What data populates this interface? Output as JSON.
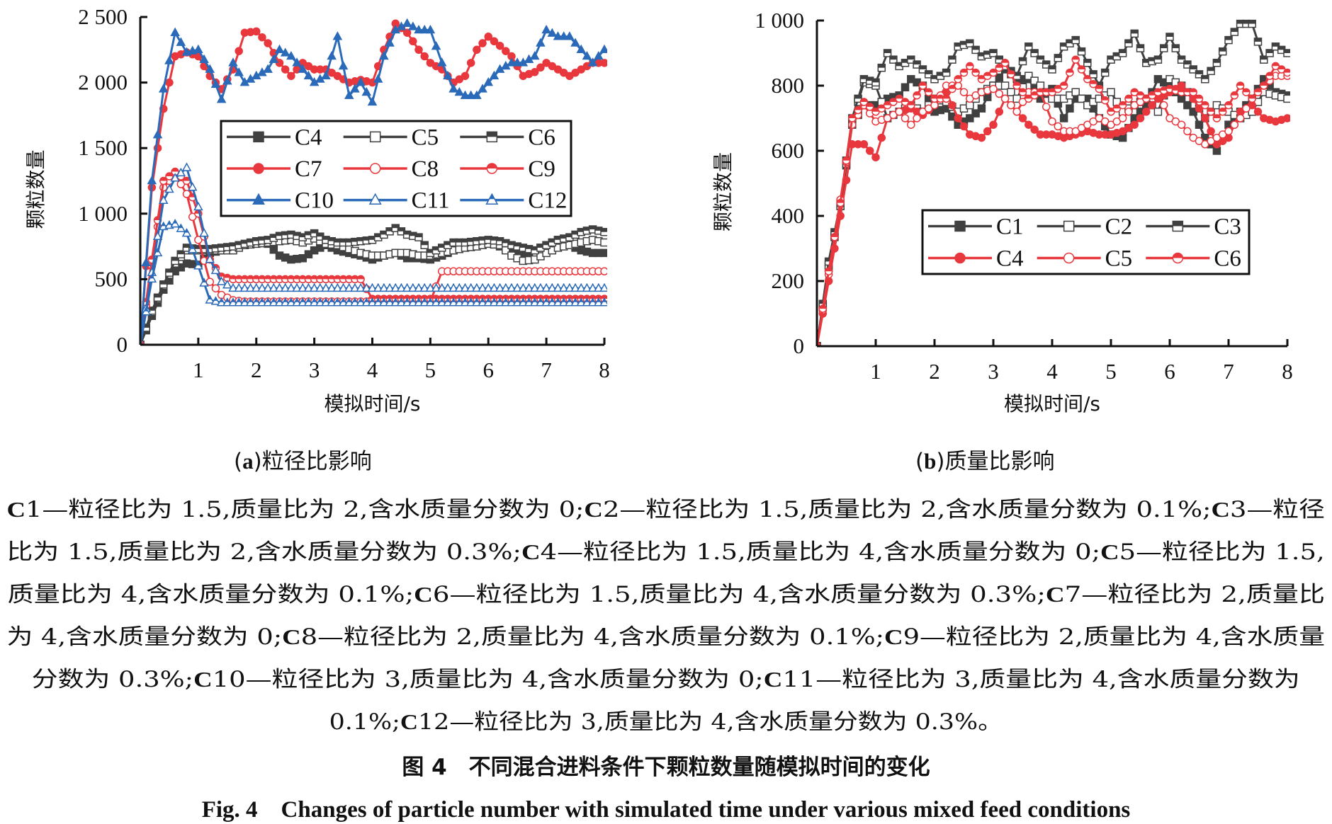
{
  "chart_data": [
    {
      "type": "line",
      "id": "a",
      "subtitle_label": "a",
      "subtitle_text": "粒径比影响",
      "xlabel": "模拟时间/s",
      "ylabel": "颗粒数量",
      "xlim": [
        0,
        8
      ],
      "ylim": [
        0,
        2500
      ],
      "xticks": [
        1,
        2,
        3,
        4,
        5,
        6,
        7,
        8
      ],
      "yticks": [
        0,
        500,
        1000,
        1500,
        2000,
        2500
      ],
      "ytick_labels": [
        "0",
        "500",
        "1 000",
        "1 500",
        "2 000",
        "2 500"
      ],
      "xtick_labels": [
        "1",
        "2",
        "3",
        "4",
        "5",
        "6",
        "7",
        "8"
      ],
      "legend_placement": "center-right",
      "legend_columns": 3,
      "x": [
        0,
        0.2,
        0.4,
        0.6,
        0.8,
        1.0,
        1.2,
        1.4,
        1.6,
        1.8,
        2.0,
        2.2,
        2.4,
        2.6,
        2.8,
        3.0,
        3.2,
        3.4,
        3.6,
        3.8,
        4.0,
        4.2,
        4.4,
        4.6,
        4.8,
        5.0,
        5.2,
        5.4,
        5.6,
        5.8,
        6.0,
        6.2,
        6.4,
        6.6,
        6.8,
        7.0,
        7.2,
        7.4,
        7.6,
        7.8,
        8.0
      ],
      "series": [
        {
          "name": "C4",
          "color": "#404040",
          "marker": "square-filled",
          "values": [
            0,
            220,
            420,
            560,
            620,
            610,
            700,
            720,
            730,
            760,
            780,
            770,
            680,
            650,
            660,
            720,
            760,
            720,
            700,
            680,
            650,
            680,
            700,
            660,
            660,
            650,
            680,
            720,
            760,
            770,
            780,
            750,
            700,
            680,
            720,
            760,
            800,
            760,
            720,
            700,
            700
          ]
        },
        {
          "name": "C5",
          "color": "#404040",
          "marker": "square-open",
          "values": [
            0,
            250,
            450,
            620,
            720,
            720,
            720,
            720,
            720,
            760,
            770,
            780,
            790,
            800,
            780,
            810,
            770,
            760,
            730,
            700,
            680,
            680,
            700,
            700,
            680,
            680,
            700,
            720,
            740,
            750,
            770,
            760,
            680,
            640,
            650,
            700,
            740,
            760,
            780,
            800,
            780
          ]
        },
        {
          "name": "C6",
          "color": "#404040",
          "marker": "square-half",
          "values": [
            0,
            260,
            460,
            640,
            740,
            730,
            730,
            740,
            750,
            770,
            790,
            800,
            830,
            840,
            820,
            850,
            800,
            780,
            780,
            790,
            800,
            840,
            890,
            840,
            820,
            700,
            740,
            780,
            780,
            790,
            800,
            790,
            760,
            740,
            720,
            760,
            800,
            820,
            860,
            880,
            860
          ]
        },
        {
          "name": "C7",
          "color": "#e8373d",
          "marker": "circle-filled",
          "values": [
            0,
            1200,
            1800,
            2200,
            2230,
            2200,
            2050,
            1950,
            2100,
            2380,
            2390,
            2300,
            2150,
            2050,
            2150,
            2100,
            2100,
            2050,
            2000,
            2020,
            2000,
            2250,
            2450,
            2380,
            2250,
            2150,
            2100,
            2000,
            2050,
            2250,
            2350,
            2280,
            2200,
            2050,
            2080,
            2150,
            2100,
            2050,
            2100,
            2150,
            2150
          ]
        },
        {
          "name": "C8",
          "color": "#e8373d",
          "marker": "circle-open",
          "values": [
            0,
            600,
            1200,
            1300,
            1150,
            800,
            480,
            380,
            340,
            330,
            330,
            330,
            330,
            330,
            330,
            330,
            330,
            330,
            330,
            330,
            330,
            330,
            330,
            330,
            330,
            330,
            560,
            560,
            560,
            560,
            560,
            560,
            560,
            560,
            560,
            560,
            560,
            560,
            560,
            560,
            560
          ]
        },
        {
          "name": "C9",
          "color": "#e8373d",
          "marker": "circle-half",
          "values": [
            0,
            650,
            1250,
            1320,
            1250,
            1000,
            650,
            520,
            500,
            500,
            500,
            500,
            500,
            500,
            500,
            500,
            500,
            500,
            500,
            500,
            350,
            350,
            350,
            350,
            350,
            350,
            350,
            350,
            350,
            350,
            350,
            350,
            350,
            350,
            350,
            350,
            350,
            350,
            350,
            350,
            350
          ]
        },
        {
          "name": "C10",
          "color": "#2a6ab8",
          "marker": "triangle-filled",
          "values": [
            0,
            1250,
            1950,
            2380,
            2230,
            2250,
            2100,
            1870,
            2150,
            2000,
            2050,
            2100,
            2250,
            2200,
            2100,
            2000,
            2050,
            2350,
            1900,
            2000,
            1850,
            2200,
            2400,
            2450,
            2400,
            2400,
            2150,
            1950,
            1900,
            1900,
            2000,
            2100,
            2150,
            2150,
            2200,
            2400,
            2350,
            2350,
            2250,
            2150,
            2250
          ]
        },
        {
          "name": "C11",
          "color": "#2a6ab8",
          "marker": "triangle-open",
          "values": [
            0,
            550,
            1100,
            1270,
            1350,
            1050,
            650,
            480,
            430,
            430,
            430,
            430,
            430,
            430,
            430,
            430,
            430,
            430,
            430,
            430,
            430,
            430,
            430,
            430,
            430,
            430,
            430,
            430,
            430,
            430,
            430,
            430,
            430,
            430,
            430,
            430,
            430,
            430,
            430,
            430,
            430
          ]
        },
        {
          "name": "C12",
          "color": "#2a6ab8",
          "marker": "triangle-half",
          "values": [
            0,
            500,
            900,
            920,
            850,
            600,
            340,
            320,
            320,
            320,
            320,
            320,
            320,
            320,
            320,
            320,
            320,
            320,
            320,
            320,
            320,
            320,
            320,
            320,
            320,
            320,
            320,
            320,
            320,
            320,
            320,
            320,
            320,
            320,
            320,
            320,
            320,
            320,
            320,
            320,
            320
          ]
        }
      ]
    },
    {
      "type": "line",
      "id": "b",
      "subtitle_label": "b",
      "subtitle_text": "质量比影响",
      "xlabel": "模拟时间/s",
      "ylabel": "颗粒数量",
      "xlim": [
        0,
        8
      ],
      "ylim": [
        0,
        1000
      ],
      "xticks": [
        1,
        2,
        3,
        4,
        5,
        6,
        7,
        8
      ],
      "yticks": [
        0,
        200,
        400,
        600,
        800,
        1000
      ],
      "ytick_labels": [
        "0",
        "200",
        "400",
        "600",
        "800",
        "1 000"
      ],
      "xtick_labels": [
        "1",
        "2",
        "3",
        "4",
        "5",
        "6",
        "7",
        "8"
      ],
      "legend_placement": "lower-right",
      "legend_columns": 3,
      "x": [
        0,
        0.2,
        0.4,
        0.6,
        0.8,
        1.0,
        1.2,
        1.4,
        1.6,
        1.8,
        2.0,
        2.2,
        2.4,
        2.6,
        2.8,
        3.0,
        3.2,
        3.4,
        3.6,
        3.8,
        4.0,
        4.2,
        4.4,
        4.6,
        4.8,
        5.0,
        5.2,
        5.4,
        5.6,
        5.8,
        6.0,
        6.2,
        6.4,
        6.6,
        6.8,
        7.0,
        7.2,
        7.4,
        7.6,
        7.8,
        8.0
      ],
      "series": [
        {
          "name": "C1",
          "color": "#404040",
          "marker": "square-filled",
          "values": [
            0,
            250,
            430,
            680,
            740,
            740,
            760,
            770,
            820,
            800,
            720,
            730,
            680,
            700,
            730,
            800,
            850,
            820,
            820,
            760,
            790,
            700,
            760,
            760,
            700,
            650,
            640,
            700,
            740,
            820,
            800,
            760,
            720,
            640,
            600,
            680,
            720,
            760,
            820,
            780,
            770
          ]
        },
        {
          "name": "C2",
          "color": "#404040",
          "marker": "square-open",
          "values": [
            0,
            240,
            430,
            690,
            810,
            800,
            700,
            720,
            740,
            720,
            760,
            750,
            720,
            740,
            780,
            800,
            800,
            760,
            830,
            800,
            760,
            760,
            780,
            740,
            760,
            780,
            720,
            740,
            760,
            720,
            820,
            800,
            760,
            700,
            740,
            720,
            700,
            720,
            780,
            770,
            760
          ]
        },
        {
          "name": "C3",
          "color": "#404040",
          "marker": "square-half",
          "values": [
            0,
            260,
            440,
            700,
            820,
            810,
            900,
            860,
            880,
            850,
            820,
            840,
            920,
            930,
            890,
            900,
            860,
            830,
            920,
            880,
            850,
            920,
            940,
            870,
            800,
            880,
            900,
            960,
            870,
            880,
            950,
            880,
            850,
            820,
            870,
            940,
            990,
            990,
            880,
            920,
            900
          ]
        },
        {
          "name": "C4",
          "color": "#e8373d",
          "marker": "circle-filled",
          "values": [
            0,
            200,
            400,
            620,
            620,
            580,
            700,
            720,
            730,
            710,
            740,
            780,
            700,
            650,
            640,
            680,
            760,
            720,
            680,
            650,
            650,
            640,
            650,
            660,
            650,
            650,
            660,
            680,
            720,
            760,
            780,
            800,
            760,
            700,
            620,
            640,
            720,
            740,
            700,
            690,
            700
          ]
        },
        {
          "name": "C5",
          "color": "#e8373d",
          "marker": "circle-open",
          "values": [
            0,
            220,
            450,
            680,
            740,
            690,
            700,
            720,
            680,
            720,
            740,
            800,
            800,
            760,
            780,
            790,
            760,
            720,
            780,
            780,
            690,
            660,
            660,
            680,
            700,
            680,
            700,
            740,
            760,
            780,
            700,
            680,
            640,
            620,
            640,
            660,
            700,
            760,
            800,
            830,
            830
          ]
        },
        {
          "name": "C6",
          "color": "#e8373d",
          "marker": "circle-half",
          "values": [
            0,
            230,
            440,
            700,
            750,
            720,
            740,
            760,
            740,
            800,
            760,
            760,
            820,
            860,
            820,
            840,
            870,
            800,
            760,
            780,
            780,
            800,
            880,
            820,
            790,
            720,
            740,
            780,
            760,
            780,
            790,
            780,
            780,
            740,
            700,
            740,
            800,
            760,
            800,
            860,
            840
          ]
        }
      ]
    }
  ],
  "notes_lines": [
    [
      {
        "b": "C"
      },
      {
        "t": "1—粒径比为 1.5,质量比为 2,含水质量分数为 0;"
      },
      {
        "b": "C"
      },
      {
        "t": "2—粒径比为 1.5,质量比为 2,含水质量分数为 0.1%;"
      },
      {
        "b": "C"
      },
      {
        "t": "3—粒径"
      }
    ],
    [
      {
        "t": "比为 1.5,质量比为 2,含水质量分数为 0.3%;"
      },
      {
        "b": "C"
      },
      {
        "t": "4—粒径比为 1.5,质量比为 4,含水质量分数为 0;"
      },
      {
        "b": "C"
      },
      {
        "t": "5—粒径比为 1.5,"
      }
    ],
    [
      {
        "t": "质量比为 4,含水质量分数为 0.1%;"
      },
      {
        "b": "C"
      },
      {
        "t": "6—粒径比为 1.5,质量比为 4,含水质量分数为 0.3%;"
      },
      {
        "b": "C"
      },
      {
        "t": "7—粒径比为 2,质量比"
      }
    ],
    [
      {
        "t": "为 4,含水质量分数为 0;"
      },
      {
        "b": "C"
      },
      {
        "t": "8—粒径比为 2,质量比为 4,含水质量分数为 0.1%;"
      },
      {
        "b": "C"
      },
      {
        "t": "9—粒径比为 2,质量比为 4,含水质量"
      }
    ],
    [
      {
        "t": "分数为 0.3%;"
      },
      {
        "b": "C"
      },
      {
        "t": "10—粒径比为 3,质量比为 4,含水质量分数为 0;"
      },
      {
        "b": "C"
      },
      {
        "t": "11—粒径比为 3,质量比为 4,含水质量分数为"
      }
    ],
    [
      {
        "t": "0.1%;"
      },
      {
        "b": "C"
      },
      {
        "t": "12—粒径比为 3,质量比为 4,含水质量分数为 0.3%。"
      }
    ]
  ],
  "figure_title_cn": "图 4　不同混合进料条件下颗粒数量随模拟时间的变化",
  "figure_title_en": "Fig. 4　Changes of particle number with simulated time under various mixed feed conditions"
}
